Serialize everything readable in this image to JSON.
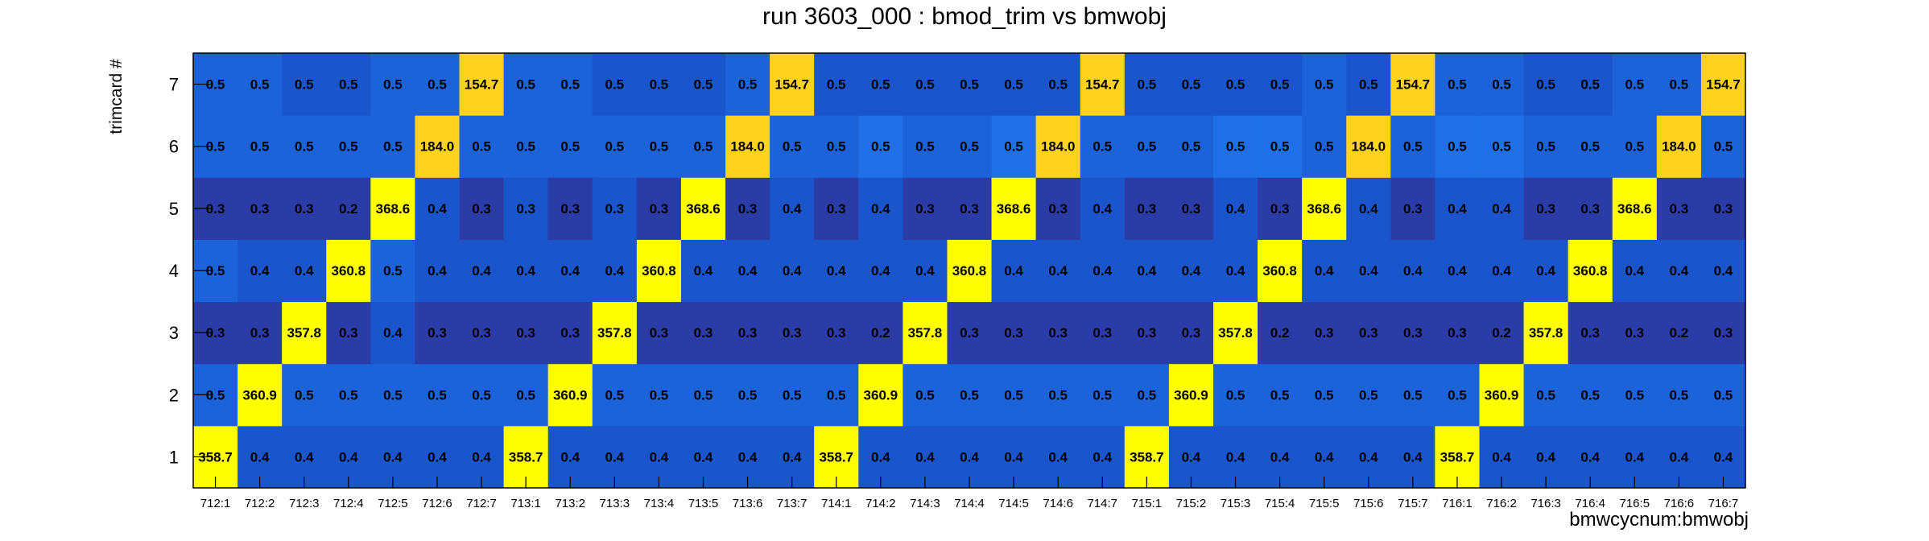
{
  "chart_data": {
    "type": "heatmap",
    "title": "run 3603_000 : bmod_trim vs bmwobj",
    "xlabel": "bmwcycnum:bmwobj",
    "ylabel": "trimcard #",
    "x_categories": [
      "712:1",
      "712:2",
      "712:3",
      "712:4",
      "712:5",
      "712:6",
      "712:7",
      "713:1",
      "713:2",
      "713:3",
      "713:4",
      "713:5",
      "713:6",
      "713:7",
      "714:1",
      "714:2",
      "714:3",
      "714:4",
      "714:5",
      "714:6",
      "714:7",
      "715:1",
      "715:2",
      "715:3",
      "715:4",
      "715:5",
      "715:6",
      "715:7",
      "716:1",
      "716:2",
      "716:3",
      "716:4",
      "716:5",
      "716:6",
      "716:7"
    ],
    "y_categories": [
      "1",
      "2",
      "3",
      "4",
      "5",
      "6",
      "7"
    ],
    "values": [
      [
        "358.7",
        "0.4",
        "0.4",
        "0.4",
        "0.4",
        "0.4",
        "0.4",
        "358.7",
        "0.4",
        "0.4",
        "0.4",
        "0.4",
        "0.4",
        "0.4",
        "358.7",
        "0.4",
        "0.4",
        "0.4",
        "0.4",
        "0.4",
        "0.4",
        "358.7",
        "0.4",
        "0.4",
        "0.4",
        "0.4",
        "0.4",
        "0.4",
        "358.7",
        "0.4",
        "0.4",
        "0.4",
        "0.4",
        "0.4",
        "0.4"
      ],
      [
        "0.5",
        "360.9",
        "0.5",
        "0.5",
        "0.5",
        "0.5",
        "0.5",
        "0.5",
        "360.9",
        "0.5",
        "0.5",
        "0.5",
        "0.5",
        "0.5",
        "0.5",
        "360.9",
        "0.5",
        "0.5",
        "0.5",
        "0.5",
        "0.5",
        "0.5",
        "360.9",
        "0.5",
        "0.5",
        "0.5",
        "0.5",
        "0.5",
        "0.5",
        "360.9",
        "0.5",
        "0.5",
        "0.5",
        "0.5",
        "0.5"
      ],
      [
        "0.3",
        "0.3",
        "357.8",
        "0.3",
        "0.4",
        "0.3",
        "0.3",
        "0.3",
        "0.3",
        "357.8",
        "0.3",
        "0.3",
        "0.3",
        "0.3",
        "0.3",
        "0.2",
        "357.8",
        "0.3",
        "0.3",
        "0.3",
        "0.3",
        "0.3",
        "0.3",
        "357.8",
        "0.2",
        "0.3",
        "0.3",
        "0.3",
        "0.3",
        "0.2",
        "357.8",
        "0.3",
        "0.3",
        "0.2",
        "0.3"
      ],
      [
        "0.5",
        "0.4",
        "0.4",
        "360.8",
        "0.5",
        "0.4",
        "0.4",
        "0.4",
        "0.4",
        "0.4",
        "360.8",
        "0.4",
        "0.4",
        "0.4",
        "0.4",
        "0.4",
        "0.4",
        "360.8",
        "0.4",
        "0.4",
        "0.4",
        "0.4",
        "0.4",
        "0.4",
        "360.8",
        "0.4",
        "0.4",
        "0.4",
        "0.4",
        "0.4",
        "0.4",
        "360.8",
        "0.4",
        "0.4",
        "0.4"
      ],
      [
        "0.3",
        "0.3",
        "0.3",
        "0.2",
        "368.6",
        "0.4",
        "0.3",
        "0.3",
        "0.3",
        "0.3",
        "0.3",
        "368.6",
        "0.3",
        "0.4",
        "0.3",
        "0.4",
        "0.3",
        "0.3",
        "368.6",
        "0.3",
        "0.4",
        "0.3",
        "0.3",
        "0.4",
        "0.3",
        "368.6",
        "0.4",
        "0.3",
        "0.4",
        "0.4",
        "0.3",
        "0.3",
        "368.6",
        "0.3",
        "0.3"
      ],
      [
        "0.5",
        "0.5",
        "0.5",
        "0.5",
        "0.5",
        "184.0",
        "0.5",
        "0.5",
        "0.5",
        "0.5",
        "0.5",
        "0.5",
        "184.0",
        "0.5",
        "0.5",
        "0.5",
        "0.5",
        "0.5",
        "0.5",
        "184.0",
        "0.5",
        "0.5",
        "0.5",
        "0.5",
        "0.5",
        "0.5",
        "184.0",
        "0.5",
        "0.5",
        "0.5",
        "0.5",
        "0.5",
        "0.5",
        "184.0",
        "0.5"
      ],
      [
        "0.5",
        "0.5",
        "0.5",
        "0.5",
        "0.5",
        "0.5",
        "154.7",
        "0.5",
        "0.5",
        "0.5",
        "0.5",
        "0.5",
        "0.5",
        "154.7",
        "0.5",
        "0.5",
        "0.5",
        "0.5",
        "0.5",
        "0.5",
        "154.7",
        "0.5",
        "0.5",
        "0.5",
        "0.5",
        "0.5",
        "0.5",
        "154.7",
        "0.5",
        "0.5",
        "0.5",
        "0.5",
        "0.5",
        "0.5",
        "154.7"
      ]
    ],
    "colors": {
      "high": "#ffff00",
      "mid_high": "#ffd21e",
      "low_light": "#1c62d8",
      "low_mid": "#1a55cc",
      "low_dark": "#2b3ca6",
      "lighter": "#1f70e6"
    },
    "cell_tone": [
      [
        "low_mid",
        "low_mid",
        "low_mid",
        "low_mid",
        "low_mid",
        "low_mid",
        "low_mid",
        "low_mid",
        "low_mid",
        "low_mid",
        "low_mid",
        "low_mid",
        "low_mid",
        "low_mid",
        "low_mid",
        "low_mid",
        "low_mid",
        "low_mid",
        "low_mid",
        "low_mid",
        "low_mid",
        "low_mid",
        "low_mid",
        "low_mid",
        "low_mid",
        "low_mid",
        "low_mid",
        "low_mid",
        "low_mid",
        "low_mid",
        "low_mid",
        "low_mid",
        "low_mid",
        "low_mid",
        "low_mid"
      ],
      [
        "low_light",
        "low_light",
        "low_light",
        "low_light",
        "low_light",
        "low_light",
        "low_light",
        "low_light",
        "low_light",
        "low_light",
        "low_light",
        "low_light",
        "low_light",
        "low_light",
        "low_light",
        "low_light",
        "low_light",
        "low_light",
        "low_light",
        "low_light",
        "low_light",
        "low_light",
        "low_light",
        "low_light",
        "low_light",
        "low_light",
        "low_light",
        "low_light",
        "low_light",
        "low_light",
        "low_light",
        "low_light",
        "low_light",
        "low_light",
        "low_light"
      ],
      [
        "low_dark",
        "low_dark",
        "low_dark",
        "low_dark",
        "low_mid",
        "low_dark",
        "low_dark",
        "low_dark",
        "low_dark",
        "low_dark",
        "low_dark",
        "low_dark",
        "low_dark",
        "low_dark",
        "low_dark",
        "low_dark",
        "low_dark",
        "low_dark",
        "low_dark",
        "low_dark",
        "low_dark",
        "low_dark",
        "low_dark",
        "low_dark",
        "low_dark",
        "low_dark",
        "low_dark",
        "low_dark",
        "low_dark",
        "low_dark",
        "low_dark",
        "low_dark",
        "low_dark",
        "low_dark",
        "low_dark"
      ],
      [
        "low_light",
        "low_mid",
        "low_mid",
        "low_mid",
        "low_light",
        "low_mid",
        "low_mid",
        "low_mid",
        "low_mid",
        "low_mid",
        "low_mid",
        "low_mid",
        "low_mid",
        "low_mid",
        "low_mid",
        "low_mid",
        "low_mid",
        "low_mid",
        "low_mid",
        "low_mid",
        "low_mid",
        "low_mid",
        "low_mid",
        "low_mid",
        "low_mid",
        "low_mid",
        "low_mid",
        "low_mid",
        "low_mid",
        "low_mid",
        "low_mid",
        "low_mid",
        "low_mid",
        "low_mid",
        "low_mid"
      ],
      [
        "low_dark",
        "low_dark",
        "low_dark",
        "low_dark",
        "low_dark",
        "low_mid",
        "low_dark",
        "low_mid",
        "low_dark",
        "low_mid",
        "low_dark",
        "low_dark",
        "low_dark",
        "low_mid",
        "low_dark",
        "low_mid",
        "low_dark",
        "low_dark",
        "low_dark",
        "low_dark",
        "low_mid",
        "low_dark",
        "low_dark",
        "low_mid",
        "low_dark",
        "low_dark",
        "low_mid",
        "low_dark",
        "low_mid",
        "low_mid",
        "low_dark",
        "low_dark",
        "low_dark",
        "low_dark",
        "low_dark"
      ],
      [
        "low_light",
        "low_light",
        "low_light",
        "low_light",
        "low_light",
        "low_light",
        "low_light",
        "low_light",
        "low_light",
        "low_light",
        "low_light",
        "low_light",
        "low_light",
        "low_light",
        "low_light",
        "lighter",
        "low_light",
        "low_light",
        "lighter",
        "low_light",
        "low_light",
        "low_light",
        "low_light",
        "lighter",
        "lighter",
        "low_light",
        "low_light",
        "low_light",
        "lighter",
        "lighter",
        "low_light",
        "low_light",
        "low_light",
        "low_light",
        "low_light"
      ],
      [
        "low_light",
        "low_light",
        "low_mid",
        "low_mid",
        "low_light",
        "low_light",
        "mid_high",
        "low_light",
        "low_light",
        "low_mid",
        "low_mid",
        "low_mid",
        "low_light",
        "mid_high",
        "low_mid",
        "low_mid",
        "low_mid",
        "low_mid",
        "low_mid",
        "low_mid",
        "mid_high",
        "low_mid",
        "low_mid",
        "low_mid",
        "low_mid",
        "low_light",
        "low_mid",
        "mid_high",
        "low_light",
        "low_light",
        "low_mid",
        "low_mid",
        "low_light",
        "low_light",
        "mid_high"
      ]
    ]
  }
}
